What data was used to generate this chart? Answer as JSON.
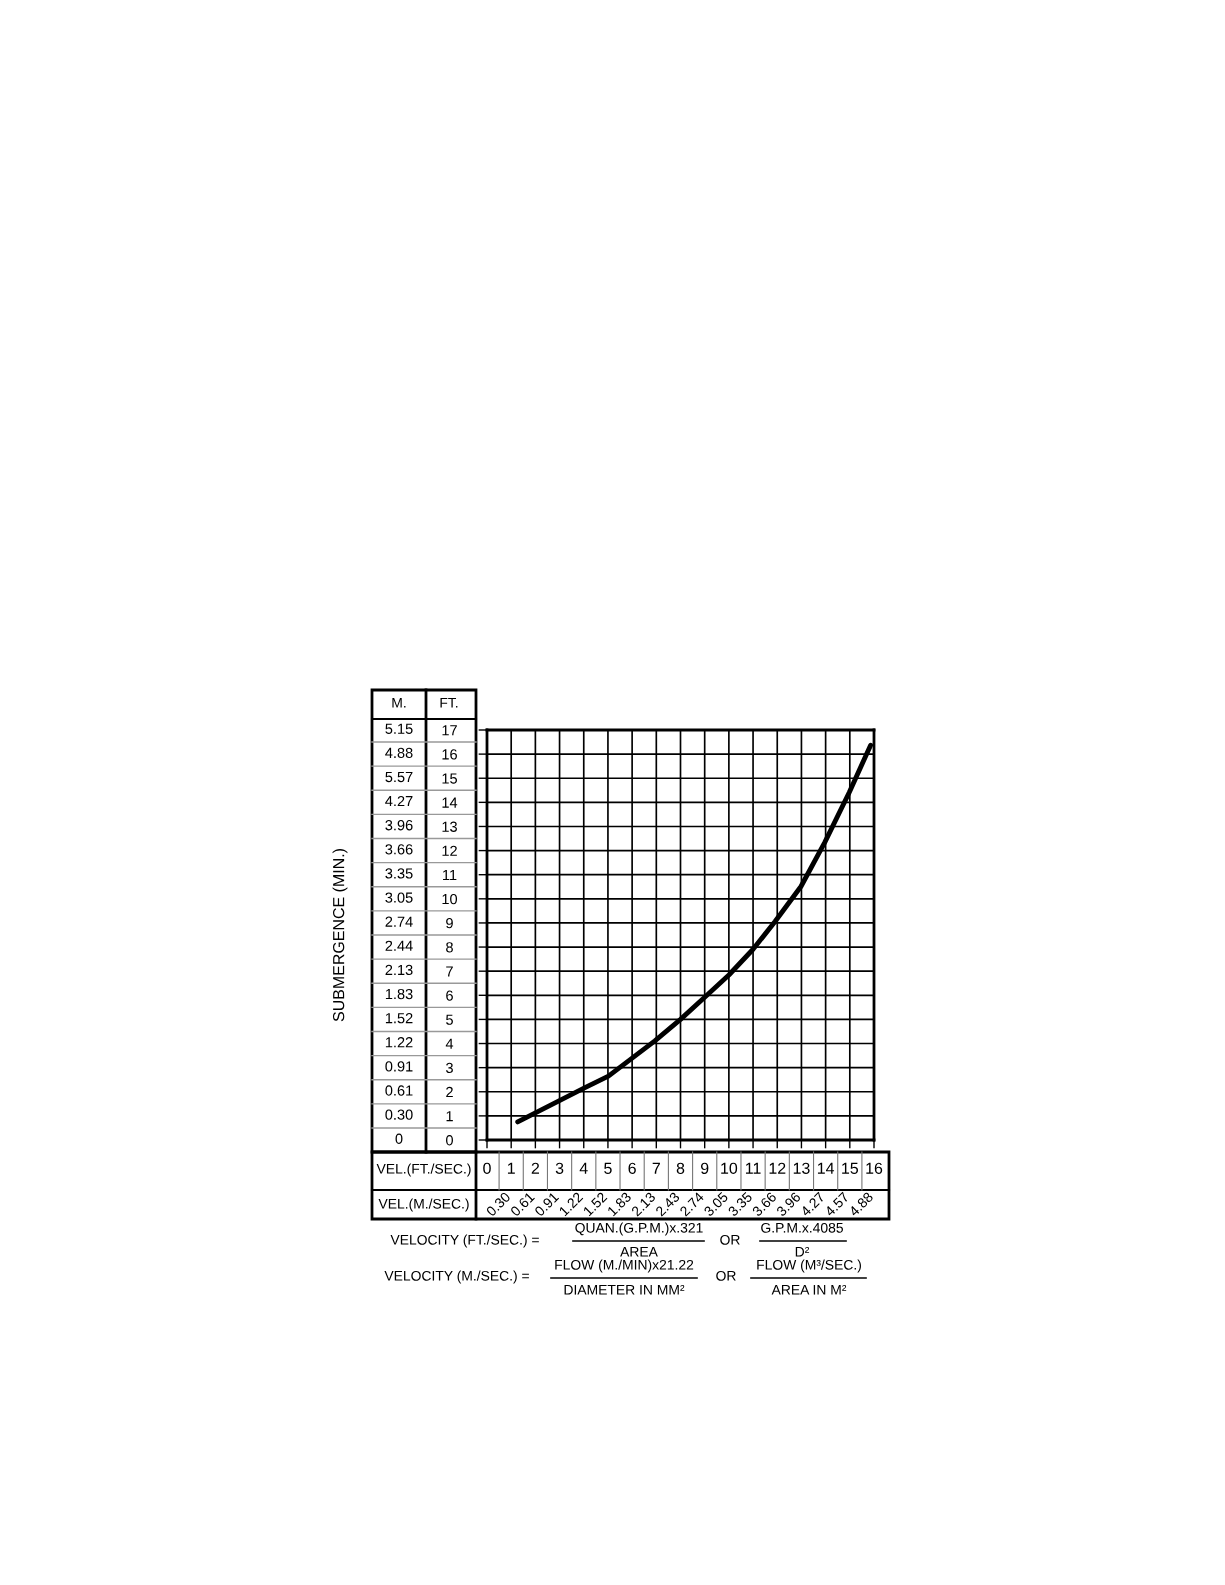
{
  "chart_data": {
    "type": "line",
    "xlabel": "VEL.(FT./SEC.)",
    "x2label": "VEL.(M./SEC.)",
    "series": [
      {
        "color": "#000000",
        "x": [
          1.27,
          4.03,
          5.02,
          6.94,
          8.0,
          9.0,
          10.0,
          11.0,
          11.91,
          12.98,
          13.97,
          14.98,
          15.86
        ],
        "values": [
          0.75,
          2.16,
          2.65,
          4.11,
          5.0,
          5.92,
          6.84,
          7.91,
          9.06,
          10.51,
          12.35,
          14.42,
          16.37
        ]
      }
    ],
    "xlim": [
      0,
      16
    ],
    "xticks": [
      0,
      1,
      2,
      3,
      4,
      5,
      6,
      7,
      8,
      9,
      10,
      11,
      12,
      13,
      14,
      15,
      16
    ],
    "ylim": [
      0,
      17
    ],
    "yticks": [
      0,
      1,
      2,
      3,
      4,
      5,
      6,
      7,
      8,
      9,
      10,
      11,
      12,
      13,
      14,
      15,
      16,
      17
    ],
    "grid": true,
    "line_style": "solid",
    "marker": "none",
    "annotations": [
      "M.",
      "FT.",
      "VELOCITY (FT./SEC.) =",
      "QUAN.(G.P.M.)x.321",
      "AREA",
      "OR",
      "G.P.M.x.4085",
      "D²",
      "VELOCITY (M./SEC.) =",
      "FLOW (M./MIN)x21.22",
      "DIAMETER IN MM²",
      "OR",
      "FLOW (M³/SEC.)",
      "AREA IN M²",
      "5.15",
      "4.88",
      "5.57",
      "4.27",
      "3.96",
      "3.66",
      "3.35",
      "3.05",
      "2.74",
      "2.44",
      "2.13",
      "1.83",
      "1.52",
      "1.22",
      "0.91",
      "0.61",
      "0.30",
      "0",
      "0.30",
      "0.61",
      "0.91",
      "1.22",
      "1.52",
      "1.83",
      "2.13",
      "2.43",
      "2.74",
      "3.05",
      "3.35",
      "3.66",
      "3.96",
      "4.27",
      "4.57",
      "4.88",
      "SUBMERGENCE (MIN.)"
    ]
  }
}
